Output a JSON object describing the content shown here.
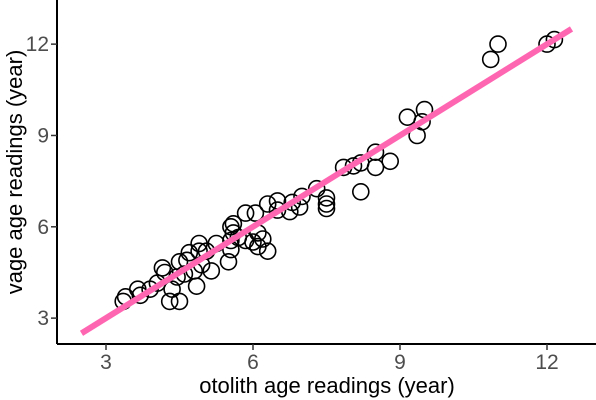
{
  "chart_data": {
    "type": "scatter",
    "xlabel": "otolith age readings (year)",
    "ylabel": "vage age readings (year)",
    "xlim": [
      2.0,
      13.0
    ],
    "ylim": [
      2.15,
      13.45
    ],
    "x_ticks": [
      3,
      6,
      9,
      12
    ],
    "y_ticks": [
      3,
      6,
      9,
      12
    ],
    "grid": false,
    "legend": "none",
    "marker": "open-circle",
    "marker_color": "#000000",
    "series": [
      {
        "points": [
          [
            3.35,
            3.55
          ],
          [
            3.4,
            3.7
          ],
          [
            3.65,
            3.95
          ],
          [
            3.7,
            3.75
          ],
          [
            3.9,
            3.95
          ],
          [
            4.05,
            4.15
          ],
          [
            4.15,
            4.65
          ],
          [
            4.2,
            4.5
          ],
          [
            4.3,
            3.55
          ],
          [
            4.35,
            3.95
          ],
          [
            4.45,
            4.35
          ],
          [
            4.5,
            3.55
          ],
          [
            4.5,
            4.85
          ],
          [
            4.6,
            4.45
          ],
          [
            4.65,
            4.9
          ],
          [
            4.7,
            5.15
          ],
          [
            4.8,
            4.55
          ],
          [
            4.85,
            4.05
          ],
          [
            4.9,
            5.2
          ],
          [
            4.9,
            5.45
          ],
          [
            4.95,
            4.75
          ],
          [
            5.05,
            5.2
          ],
          [
            5.15,
            4.55
          ],
          [
            5.25,
            5.45
          ],
          [
            5.5,
            4.85
          ],
          [
            5.55,
            5.25
          ],
          [
            5.55,
            5.55
          ],
          [
            5.6,
            5.8
          ],
          [
            5.6,
            6.1
          ],
          [
            5.55,
            6.0
          ],
          [
            5.7,
            5.65
          ],
          [
            5.85,
            5.55
          ],
          [
            5.85,
            6.45
          ],
          [
            6.0,
            5.5
          ],
          [
            6.05,
            6.45
          ],
          [
            6.1,
            5.8
          ],
          [
            6.1,
            5.35
          ],
          [
            6.2,
            5.6
          ],
          [
            6.3,
            5.2
          ],
          [
            6.3,
            6.75
          ],
          [
            6.5,
            6.55
          ],
          [
            6.5,
            6.85
          ],
          [
            6.75,
            6.5
          ],
          [
            6.8,
            6.8
          ],
          [
            6.95,
            6.65
          ],
          [
            7.0,
            7.0
          ],
          [
            7.3,
            7.25
          ],
          [
            7.5,
            6.95
          ],
          [
            7.5,
            6.6
          ],
          [
            7.5,
            6.75
          ],
          [
            7.85,
            7.95
          ],
          [
            8.05,
            8.0
          ],
          [
            8.2,
            8.1
          ],
          [
            8.2,
            7.15
          ],
          [
            8.5,
            7.95
          ],
          [
            8.5,
            8.45
          ],
          [
            8.8,
            8.15
          ],
          [
            9.15,
            9.6
          ],
          [
            9.35,
            9.0
          ],
          [
            9.45,
            9.45
          ],
          [
            9.5,
            9.85
          ],
          [
            10.85,
            11.5
          ],
          [
            11.0,
            12.0
          ],
          [
            12.0,
            12.0
          ],
          [
            12.15,
            12.15
          ]
        ]
      }
    ],
    "fit_line": {
      "color": "#ff66b2",
      "x": [
        2.5,
        12.5
      ],
      "y": [
        2.5,
        12.5
      ]
    }
  }
}
